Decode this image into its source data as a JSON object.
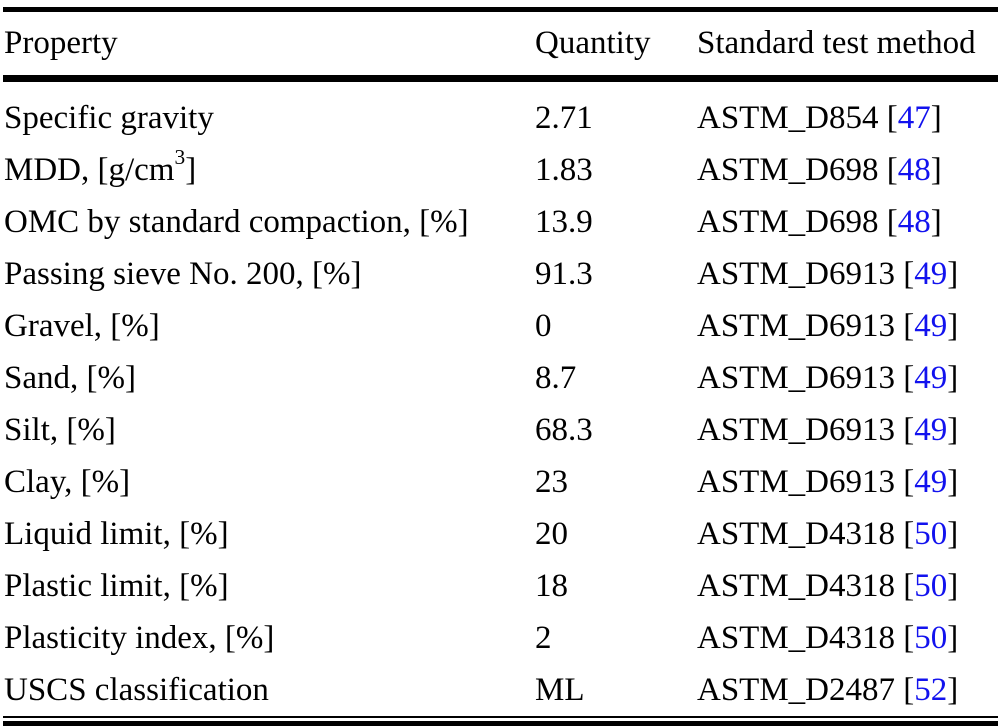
{
  "table": {
    "header": {
      "property": "Property",
      "quantity": "Quantity",
      "method": "Standard test method"
    },
    "rows": [
      {
        "property": [
          {
            "text": "Specific gravity"
          }
        ],
        "quantity": "2.71",
        "method": "ASTM_D854",
        "citation": "47"
      },
      {
        "property": [
          {
            "text": "MDD, [g/cm"
          },
          {
            "text": "3",
            "sup": true
          },
          {
            "text": "]"
          }
        ],
        "quantity": "1.83",
        "method": "ASTM_D698",
        "citation": "48"
      },
      {
        "property": [
          {
            "text": "OMC by standard compaction, [%]"
          }
        ],
        "quantity": "13.9",
        "method": "ASTM_D698",
        "citation": "48"
      },
      {
        "property": [
          {
            "text": "Passing sieve No. 200, [%]"
          }
        ],
        "quantity": "91.3",
        "method": "ASTM_D6913",
        "citation": "49"
      },
      {
        "property": [
          {
            "text": "Gravel, [%]"
          }
        ],
        "quantity": "0",
        "method": "ASTM_D6913",
        "citation": "49"
      },
      {
        "property": [
          {
            "text": "Sand, [%]"
          }
        ],
        "quantity": "8.7",
        "method": "ASTM_D6913",
        "citation": "49"
      },
      {
        "property": [
          {
            "text": "Silt, [%]"
          }
        ],
        "quantity": "68.3",
        "method": "ASTM_D6913",
        "citation": "49"
      },
      {
        "property": [
          {
            "text": "Clay, [%]"
          }
        ],
        "quantity": "23",
        "method": "ASTM_D6913",
        "citation": "49"
      },
      {
        "property": [
          {
            "text": "Liquid limit, [%]"
          }
        ],
        "quantity": "20",
        "method": "ASTM_D4318",
        "citation": "50"
      },
      {
        "property": [
          {
            "text": "Plastic limit, [%]"
          }
        ],
        "quantity": "18",
        "method": "ASTM_D4318",
        "citation": "50"
      },
      {
        "property": [
          {
            "text": "Plasticity index, [%]"
          }
        ],
        "quantity": "2",
        "method": "ASTM_D4318",
        "citation": "50"
      },
      {
        "property": [
          {
            "text": "USCS classification"
          }
        ],
        "quantity": "ML",
        "method": "ASTM_D2487",
        "citation": "52"
      }
    ],
    "citation_bracket_open": " [",
    "citation_bracket_close": "]"
  },
  "colors": {
    "text": "#000000",
    "citation": "#1212ee",
    "background": "#ffffff",
    "rule": "#000000"
  }
}
